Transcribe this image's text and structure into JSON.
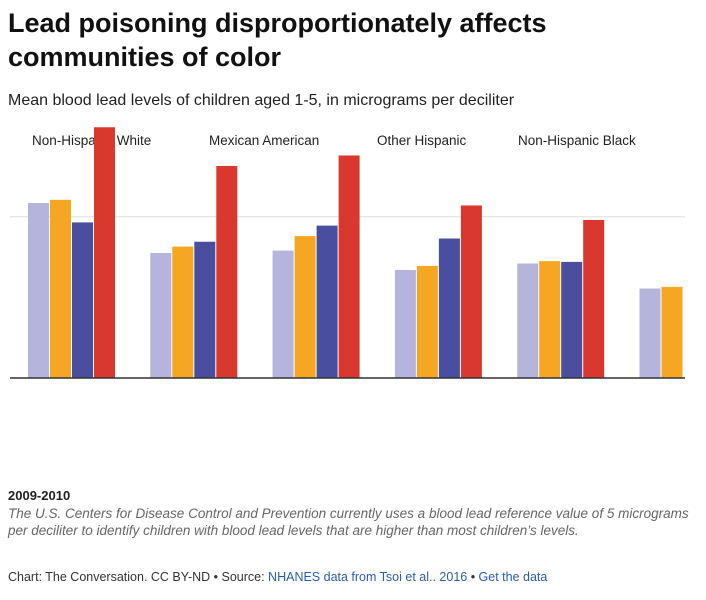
{
  "chart_data": {
    "type": "bar",
    "title": "Lead poisoning disproportionately affects communities of color",
    "subtitle": "Mean blood lead levels of children aged 1-5, in micrograms per deciliter",
    "categories": [
      null,
      null,
      null,
      null,
      null,
      null
    ],
    "series": [
      {
        "name": "Non-Hispanic White",
        "color": "#b4b4dc",
        "values": [
          2.17,
          1.55,
          1.58,
          1.34,
          1.42,
          1.11
        ]
      },
      {
        "name": "Mexican American",
        "color": "#f5a623",
        "values": [
          2.21,
          1.63,
          1.76,
          1.39,
          1.45,
          1.13
        ]
      },
      {
        "name": "Other Hispanic",
        "color": "#4a4e9e",
        "values": [
          1.93,
          1.69,
          1.89,
          1.73,
          1.44,
          null
        ]
      },
      {
        "name": "Non-Hispanic Black",
        "color": "#d9382e",
        "values": [
          3.11,
          2.63,
          2.76,
          2.14,
          1.96,
          null
        ]
      }
    ],
    "ylim": [
      0,
      3.2
    ],
    "gridlines": [
      0,
      2
    ],
    "period": "2009-2010",
    "note": "The U.S. Centers for Disease Control and Prevention currently uses a blood lead reference value of 5 micrograms per deciliter to identify children with blood lead levels that are higher than most children’s levels.",
    "credit": "Chart: The Conversation. CC BY-ND • Source: ",
    "source_link": "NHANES data from Tsoi et al.. 2016",
    "separator": " • ",
    "data_link": "Get the data"
  }
}
